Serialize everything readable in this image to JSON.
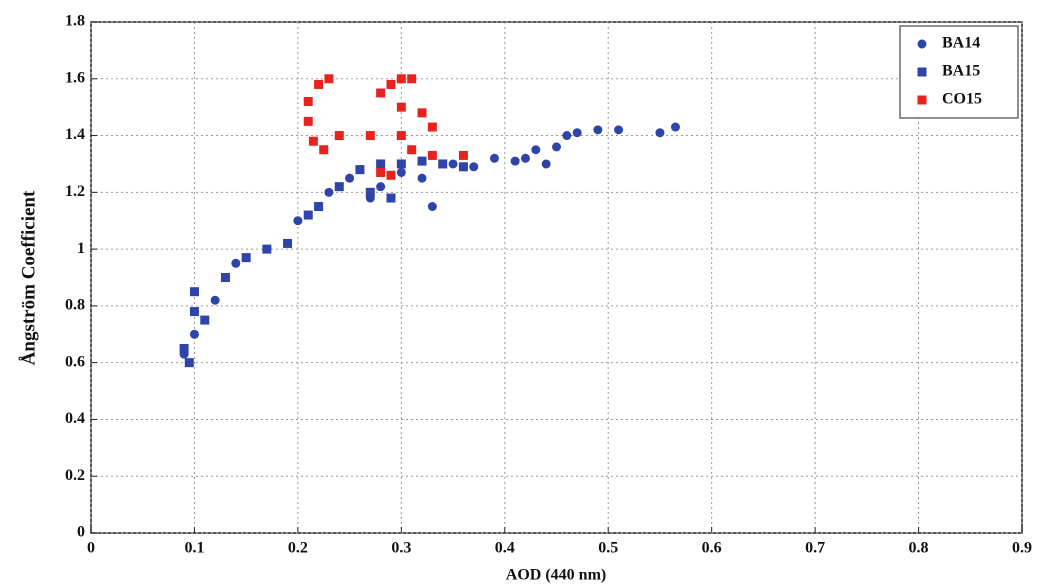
{
  "chart_data": {
    "type": "scatter",
    "x_label": "AOD (440 nm)",
    "y_label": "Ångström Coefficient",
    "xlim": [
      0,
      0.9
    ],
    "ylim": [
      0,
      1.8
    ],
    "xticks": [
      0,
      0.1,
      0.2,
      0.3,
      0.4,
      0.5,
      0.6,
      0.7,
      0.8,
      0.9
    ],
    "yticks": [
      0,
      0.2,
      0.4,
      0.6,
      0.8,
      1,
      1.2,
      1.4,
      1.6,
      1.8
    ],
    "grid": true,
    "legend": "top-right",
    "series": [
      {
        "name": "BA14",
        "color": "#2e44a8",
        "marker": "circle",
        "x": [
          0.09,
          0.1,
          0.12,
          0.14,
          0.2,
          0.23,
          0.25,
          0.27,
          0.28,
          0.3,
          0.32,
          0.33,
          0.35,
          0.37,
          0.39,
          0.41,
          0.42,
          0.43,
          0.44,
          0.45,
          0.46,
          0.47,
          0.49,
          0.51,
          0.55,
          0.565
        ],
        "values": [
          0.63,
          0.7,
          0.82,
          0.95,
          1.1,
          1.2,
          1.25,
          1.18,
          1.22,
          1.27,
          1.25,
          1.15,
          1.3,
          1.29,
          1.32,
          1.31,
          1.32,
          1.35,
          1.3,
          1.36,
          1.4,
          1.41,
          1.42,
          1.42,
          1.41,
          1.43
        ]
      },
      {
        "name": "BA15",
        "color": "#2e44a8",
        "marker": "square",
        "x": [
          0.09,
          0.095,
          0.1,
          0.1,
          0.11,
          0.13,
          0.15,
          0.17,
          0.19,
          0.21,
          0.22,
          0.24,
          0.26,
          0.28,
          0.3,
          0.32,
          0.34,
          0.36,
          0.27,
          0.29
        ],
        "values": [
          0.65,
          0.6,
          0.78,
          0.85,
          0.75,
          0.9,
          0.97,
          1.0,
          1.02,
          1.12,
          1.15,
          1.22,
          1.28,
          1.3,
          1.3,
          1.31,
          1.3,
          1.29,
          1.2,
          1.18
        ]
      },
      {
        "name": "CO15",
        "color": "#e8231f",
        "marker": "square",
        "x": [
          0.21,
          0.21,
          0.22,
          0.23,
          0.215,
          0.225,
          0.24,
          0.28,
          0.29,
          0.3,
          0.31,
          0.3,
          0.32,
          0.33,
          0.3,
          0.31,
          0.33,
          0.36,
          0.28,
          0.27,
          0.29
        ],
        "values": [
          1.45,
          1.52,
          1.58,
          1.6,
          1.38,
          1.35,
          1.4,
          1.55,
          1.58,
          1.6,
          1.6,
          1.5,
          1.48,
          1.43,
          1.4,
          1.35,
          1.33,
          1.33,
          1.27,
          1.4,
          1.26
        ]
      }
    ]
  }
}
